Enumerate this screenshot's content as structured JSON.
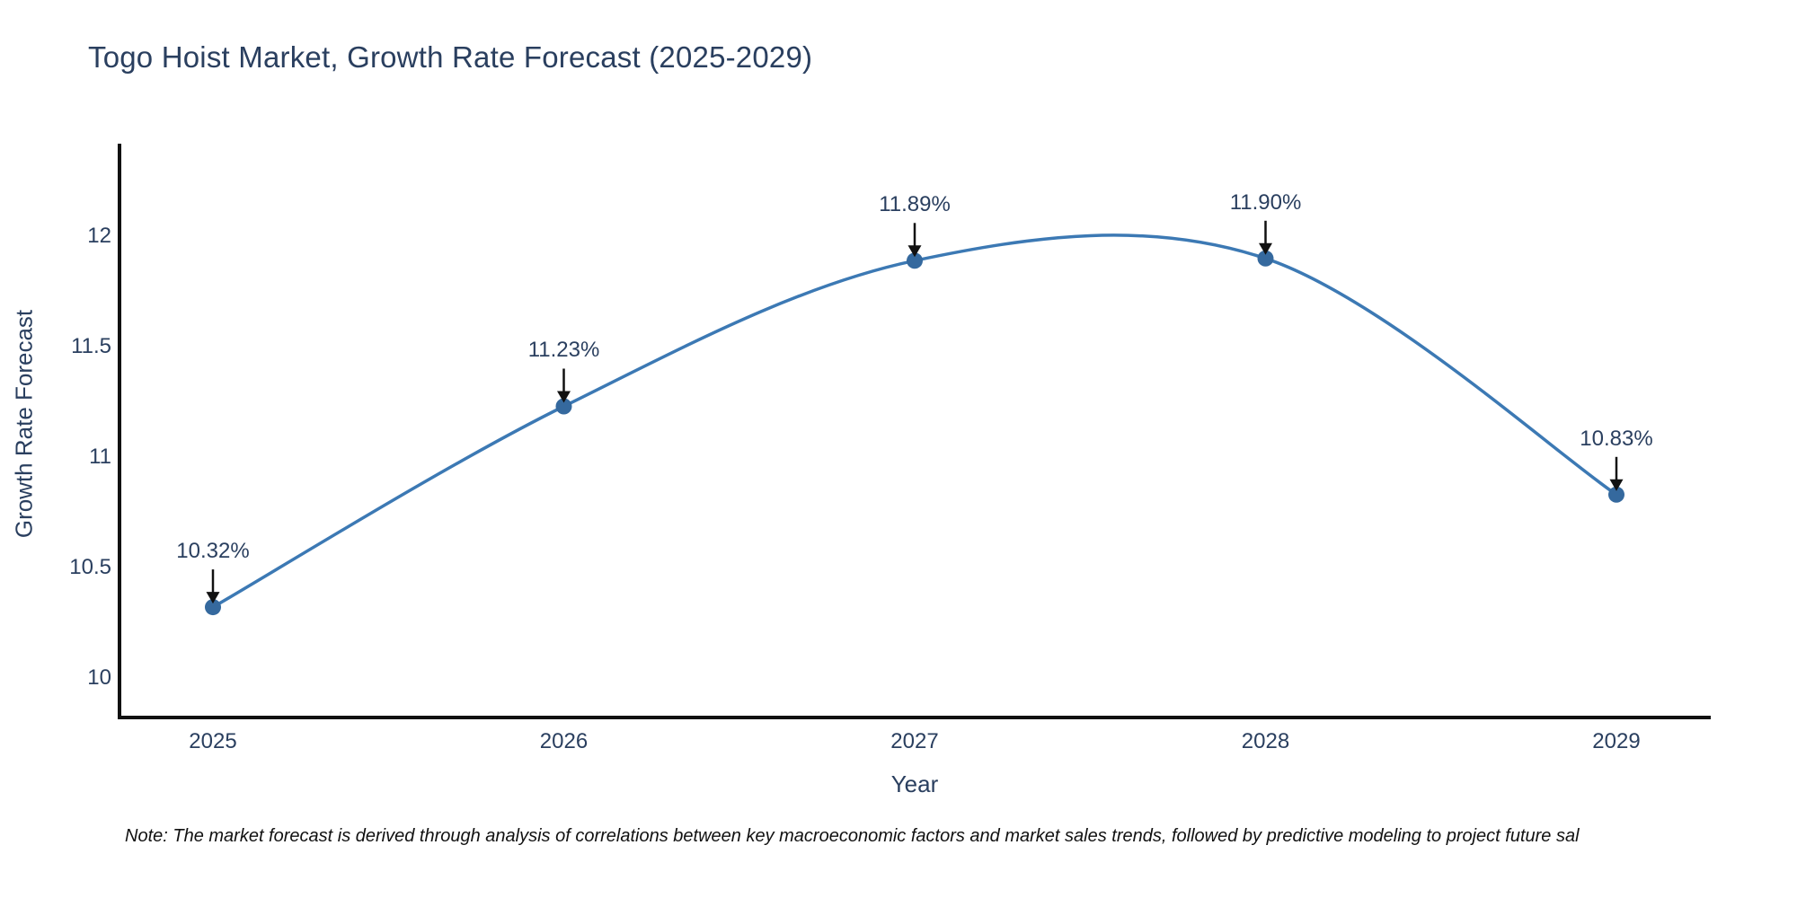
{
  "note": "Note: The market forecast is derived through analysis of correlations between key macroeconomic factors and market sales trends, followed by predictive modeling to project future sal",
  "chart_data": {
    "type": "line",
    "title": "Togo Hoist Market, Growth Rate Forecast (2025-2029)",
    "xlabel": "Year",
    "ylabel": "Growth Rate Forecast",
    "categories": [
      "2025",
      "2026",
      "2027",
      "2028",
      "2029"
    ],
    "series": [
      {
        "name": "Growth Rate Forecast",
        "values": [
          10.32,
          11.23,
          11.89,
          11.9,
          10.83
        ]
      }
    ],
    "point_labels": [
      "10.32%",
      "11.23%",
      "11.89%",
      "11.90%",
      "10.83%"
    ],
    "ytick_labels": [
      "10",
      "10.5",
      "11",
      "11.5",
      "12"
    ],
    "ytick_values": [
      10,
      10.5,
      11,
      11.5,
      12
    ],
    "ylim": [
      9.82,
      12.42
    ],
    "grid": false,
    "legend": "none",
    "curve": "spline",
    "annotation_arrows": true,
    "colors": {
      "line": "#3c79b4",
      "marker": "#35699e",
      "axis": "#111111",
      "text": "#2a3f5f",
      "annotation": "#2a3f5f",
      "note_text": "#111111",
      "background": "#ffffff"
    }
  }
}
